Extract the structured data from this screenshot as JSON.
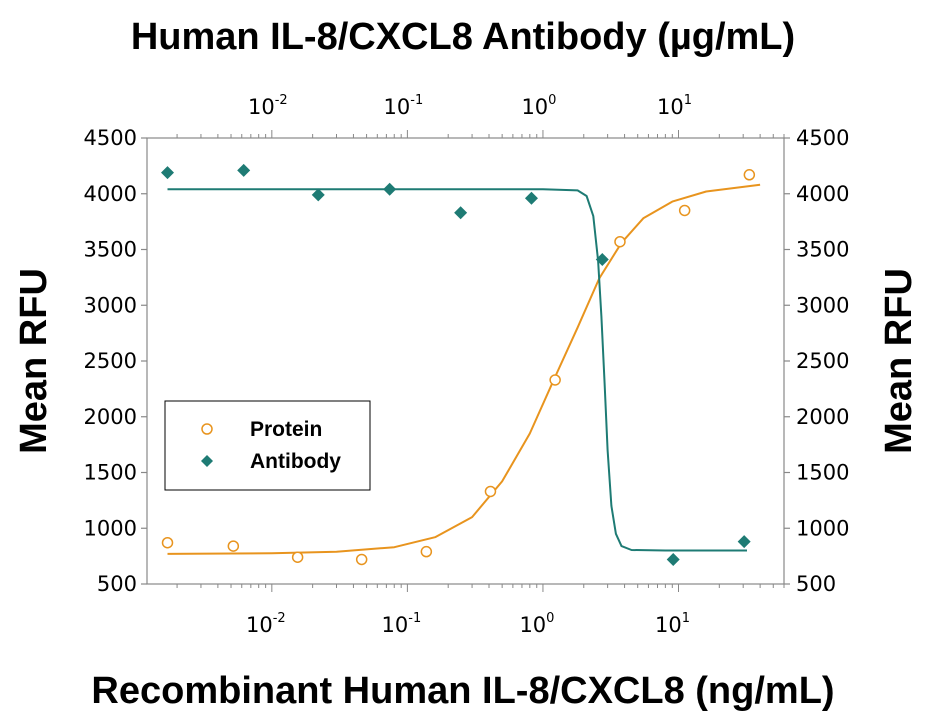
{
  "chart_data": {
    "type": "scatter",
    "title": "Recombinant Human IL-8/CXCL8 (ng/mL)",
    "top_title": "Human IL-8/CXCL8 Antibody (µg/mL)",
    "ylabel_left": "Mean RFU",
    "ylabel_right": "Mean RFU",
    "xlabel": "Recombinant Human IL-8/CXCL8 (ng/mL)",
    "x_scale": "log",
    "x_bottom_range": [
      0.0012,
      60
    ],
    "x_top_range": [
      0.0012,
      60
    ],
    "ylim": [
      500,
      4500
    ],
    "y_ticks": [
      "500",
      "1000",
      "1500",
      "2000",
      "2500",
      "3000",
      "3500",
      "4000",
      "4500"
    ],
    "x_bottom_ticks": [
      {
        "base": "10",
        "exp": "-2",
        "value": 0.01
      },
      {
        "base": "10",
        "exp": "-1",
        "value": 0.1
      },
      {
        "base": "10",
        "exp": "0",
        "value": 1
      },
      {
        "base": "10",
        "exp": "1",
        "value": 10
      }
    ],
    "x_top_ticks": [
      {
        "base": "10",
        "exp": "-2",
        "value": 0.01
      },
      {
        "base": "10",
        "exp": "-1",
        "value": 0.1
      },
      {
        "base": "10",
        "exp": "0",
        "value": 1
      },
      {
        "base": "10",
        "exp": "1",
        "value": 10
      }
    ],
    "legend": {
      "position": "left-middle",
      "entries": [
        "Protein",
        "Antibody"
      ]
    },
    "series": [
      {
        "name": "Protein",
        "axis": "bottom",
        "color": "#E8941E",
        "marker": "open-circle",
        "points": [
          {
            "x": 0.0017,
            "y": 870
          },
          {
            "x": 0.0052,
            "y": 840
          },
          {
            "x": 0.0155,
            "y": 740
          },
          {
            "x": 0.046,
            "y": 720
          },
          {
            "x": 0.138,
            "y": 790
          },
          {
            "x": 0.41,
            "y": 1330
          },
          {
            "x": 1.23,
            "y": 2330
          },
          {
            "x": 3.7,
            "y": 3570
          },
          {
            "x": 11.1,
            "y": 3850
          },
          {
            "x": 33.3,
            "y": 4170
          }
        ],
        "fit_curve": [
          {
            "x": 0.0017,
            "y": 770
          },
          {
            "x": 0.01,
            "y": 775
          },
          {
            "x": 0.03,
            "y": 790
          },
          {
            "x": 0.08,
            "y": 830
          },
          {
            "x": 0.16,
            "y": 920
          },
          {
            "x": 0.3,
            "y": 1100
          },
          {
            "x": 0.5,
            "y": 1420
          },
          {
            "x": 0.8,
            "y": 1850
          },
          {
            "x": 1.2,
            "y": 2330
          },
          {
            "x": 1.8,
            "y": 2800
          },
          {
            "x": 2.6,
            "y": 3240
          },
          {
            "x": 3.8,
            "y": 3560
          },
          {
            "x": 5.5,
            "y": 3780
          },
          {
            "x": 9,
            "y": 3930
          },
          {
            "x": 16,
            "y": 4020
          },
          {
            "x": 40,
            "y": 4080
          }
        ]
      },
      {
        "name": "Antibody",
        "axis": "top",
        "color": "#1E7B74",
        "marker": "filled-diamond",
        "points": [
          {
            "x": 0.0017,
            "y": 4190
          },
          {
            "x": 0.0062,
            "y": 4210
          },
          {
            "x": 0.022,
            "y": 3990
          },
          {
            "x": 0.074,
            "y": 4040
          },
          {
            "x": 0.247,
            "y": 3830
          },
          {
            "x": 0.823,
            "y": 3960
          },
          {
            "x": 2.74,
            "y": 3410
          },
          {
            "x": 9.14,
            "y": 720
          },
          {
            "x": 30.5,
            "y": 880
          }
        ],
        "fit_curve": [
          {
            "x": 0.0017,
            "y": 4040
          },
          {
            "x": 0.1,
            "y": 4040
          },
          {
            "x": 1.0,
            "y": 4040
          },
          {
            "x": 1.8,
            "y": 4030
          },
          {
            "x": 2.1,
            "y": 3980
          },
          {
            "x": 2.35,
            "y": 3800
          },
          {
            "x": 2.55,
            "y": 3400
          },
          {
            "x": 2.7,
            "y": 2900
          },
          {
            "x": 2.85,
            "y": 2300
          },
          {
            "x": 3.0,
            "y": 1700
          },
          {
            "x": 3.2,
            "y": 1200
          },
          {
            "x": 3.45,
            "y": 950
          },
          {
            "x": 3.8,
            "y": 840
          },
          {
            "x": 4.5,
            "y": 805
          },
          {
            "x": 8,
            "y": 800
          },
          {
            "x": 32,
            "y": 800
          }
        ]
      }
    ]
  }
}
